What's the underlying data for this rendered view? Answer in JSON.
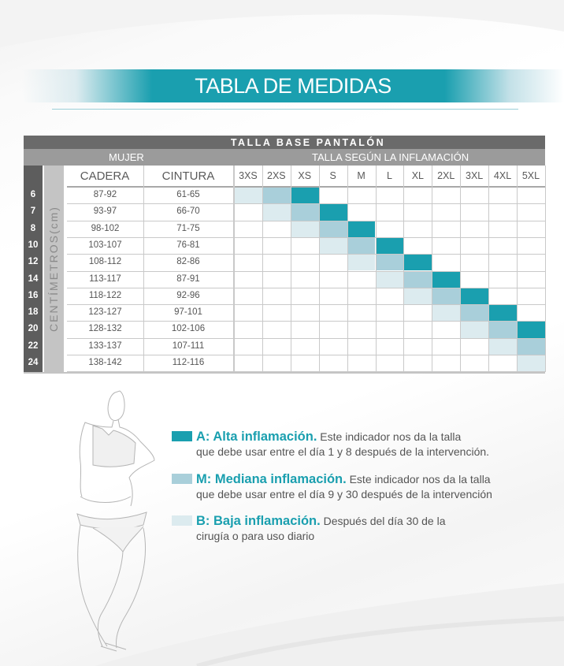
{
  "header": {
    "title": "TABLA DE MEDIDAS"
  },
  "table": {
    "title": "TALLA BASE PANTALÓN",
    "group_left": "MUJER",
    "group_right": "TALLA SEGÚN LA INFLAMACIÓN",
    "unit_label": "CENTÍMETROS(cm)",
    "col_cadera": "CADERA",
    "col_cintura": "CINTURA",
    "sizes": [
      "3XS",
      "2XS",
      "XS",
      "S",
      "M",
      "L",
      "XL",
      "2XL",
      "3XL",
      "4XL",
      "5XL"
    ],
    "rows": [
      {
        "num": "6",
        "cadera": "87-92",
        "cintura": "61-65"
      },
      {
        "num": "7",
        "cadera": "93-97",
        "cintura": "66-70"
      },
      {
        "num": "8",
        "cadera": "98-102",
        "cintura": "71-75"
      },
      {
        "num": "10",
        "cadera": "103-107",
        "cintura": "76-81"
      },
      {
        "num": "12",
        "cadera": "108-112",
        "cintura": "82-86"
      },
      {
        "num": "14",
        "cadera": "113-117",
        "cintura": "87-91"
      },
      {
        "num": "16",
        "cadera": "118-122",
        "cintura": "92-96"
      },
      {
        "num": "18",
        "cadera": "123-127",
        "cintura": "97-101"
      },
      {
        "num": "20",
        "cadera": "128-132",
        "cintura": "102-106"
      },
      {
        "num": "22",
        "cadera": "133-137",
        "cintura": "107-111"
      },
      {
        "num": "24",
        "cadera": "138-142",
        "cintura": "112-116"
      }
    ],
    "shading_note": "Per row i (0-based): size index i = B (baja), i+1 = M (mediana), i+2 = A (alta), clipped to 5XL"
  },
  "colors": {
    "alta": "#1a9faf",
    "mediana": "#a9cfda",
    "baja": "#dcebef",
    "header_dark": "#6a6a6a",
    "header_mid": "#9b9b9b"
  },
  "legend": [
    {
      "key": "alta",
      "title": "A: Alta inflamación.",
      "line1": " Este indicador nos da la talla",
      "line2": "que debe usar entre el día 1 y 8 después de la intervención."
    },
    {
      "key": "mediana",
      "title": "M: Mediana inflamación.",
      "line1": " Este indicador nos da la talla",
      "line2": "que debe usar entre el día 9 y 30 después de la intervención"
    },
    {
      "key": "baja",
      "title": "B: Baja inflamación.",
      "line1": " Después del día 30 de la",
      "line2": "cirugía o para uso diario"
    }
  ]
}
